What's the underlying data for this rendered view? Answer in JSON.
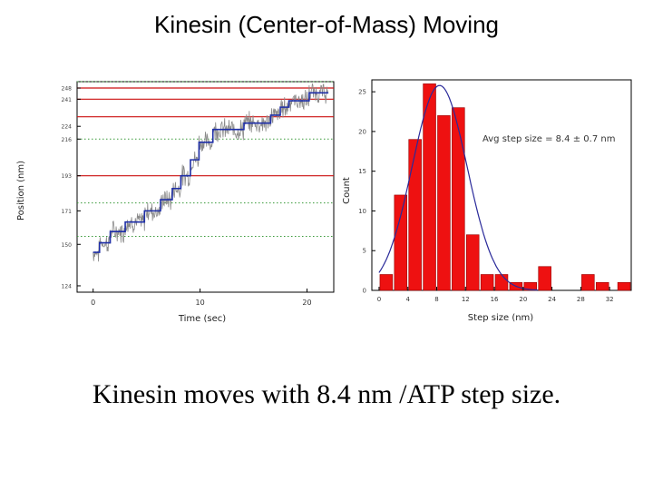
{
  "slide": {
    "title": "Kinesin (Center-of-Mass) Moving",
    "caption": "Kinesin moves with 8.4 nm /ATP step size."
  },
  "colors": {
    "trace": "#8a8a8a",
    "steps": "#1f2fa8",
    "red_lines": "#cc1111",
    "green_grid": "#3a9a3a",
    "bars": "#ee1111",
    "fit": "#2a2a9a"
  },
  "chart_data": [
    {
      "type": "line",
      "xlabel": "Time (sec)",
      "ylabel": "Position (nm)",
      "xlim": [
        -1.5,
        22.5
      ],
      "ylim": [
        120,
        252
      ],
      "xticks": [
        0,
        10,
        20
      ],
      "yticks": [
        124,
        150,
        171,
        193,
        216,
        224,
        241,
        248
      ],
      "red_lines": [
        193,
        230,
        241,
        248
      ],
      "green_lines": [
        155,
        176,
        216,
        252
      ],
      "series": [
        {
          "values": [
            [
              0.0,
              145
            ],
            [
              0.6,
              145
            ],
            [
              0.6,
              151
            ],
            [
              1.6,
              151
            ],
            [
              1.6,
              158
            ],
            [
              3.0,
              158
            ],
            [
              3.0,
              164
            ],
            [
              4.8,
              164
            ],
            [
              4.8,
              171
            ],
            [
              6.3,
              171
            ],
            [
              6.3,
              178
            ],
            [
              7.4,
              178
            ],
            [
              7.4,
              185
            ],
            [
              8.2,
              185
            ],
            [
              8.2,
              193
            ],
            [
              9.1,
              193
            ],
            [
              9.1,
              203
            ],
            [
              9.9,
              203
            ],
            [
              9.9,
              214
            ],
            [
              11.2,
              214
            ],
            [
              11.2,
              222
            ],
            [
              14.1,
              222
            ],
            [
              14.1,
              226
            ],
            [
              16.6,
              226
            ],
            [
              16.6,
              231
            ],
            [
              17.5,
              231
            ],
            [
              17.5,
              236
            ],
            [
              18.3,
              236
            ],
            [
              18.3,
              240
            ],
            [
              20.2,
              240
            ],
            [
              20.2,
              245
            ],
            [
              22.0,
              245
            ]
          ]
        }
      ]
    },
    {
      "type": "bar",
      "xlabel": "Step size (nm)",
      "ylabel": "Count",
      "xlim": [
        -1,
        35
      ],
      "ylim": [
        0,
        26.5
      ],
      "xticks": [
        0,
        4,
        8,
        12,
        16,
        20,
        24,
        28,
        32
      ],
      "yticks": [
        0,
        5,
        10,
        15,
        20,
        25
      ],
      "x": [
        1,
        3,
        5,
        7,
        9,
        11,
        13,
        15,
        17,
        19,
        21,
        23,
        29,
        31,
        34
      ],
      "values": [
        2,
        12,
        19,
        26,
        22,
        23,
        7,
        2,
        2,
        1,
        1,
        3,
        2,
        1,
        1
      ],
      "annotation": "Avg step size = 8.4 ± 0.7 nm",
      "fit": {
        "type": "gaussian",
        "mean": 8.4,
        "sigma": 3.8,
        "peak": 25.8
      }
    }
  ]
}
